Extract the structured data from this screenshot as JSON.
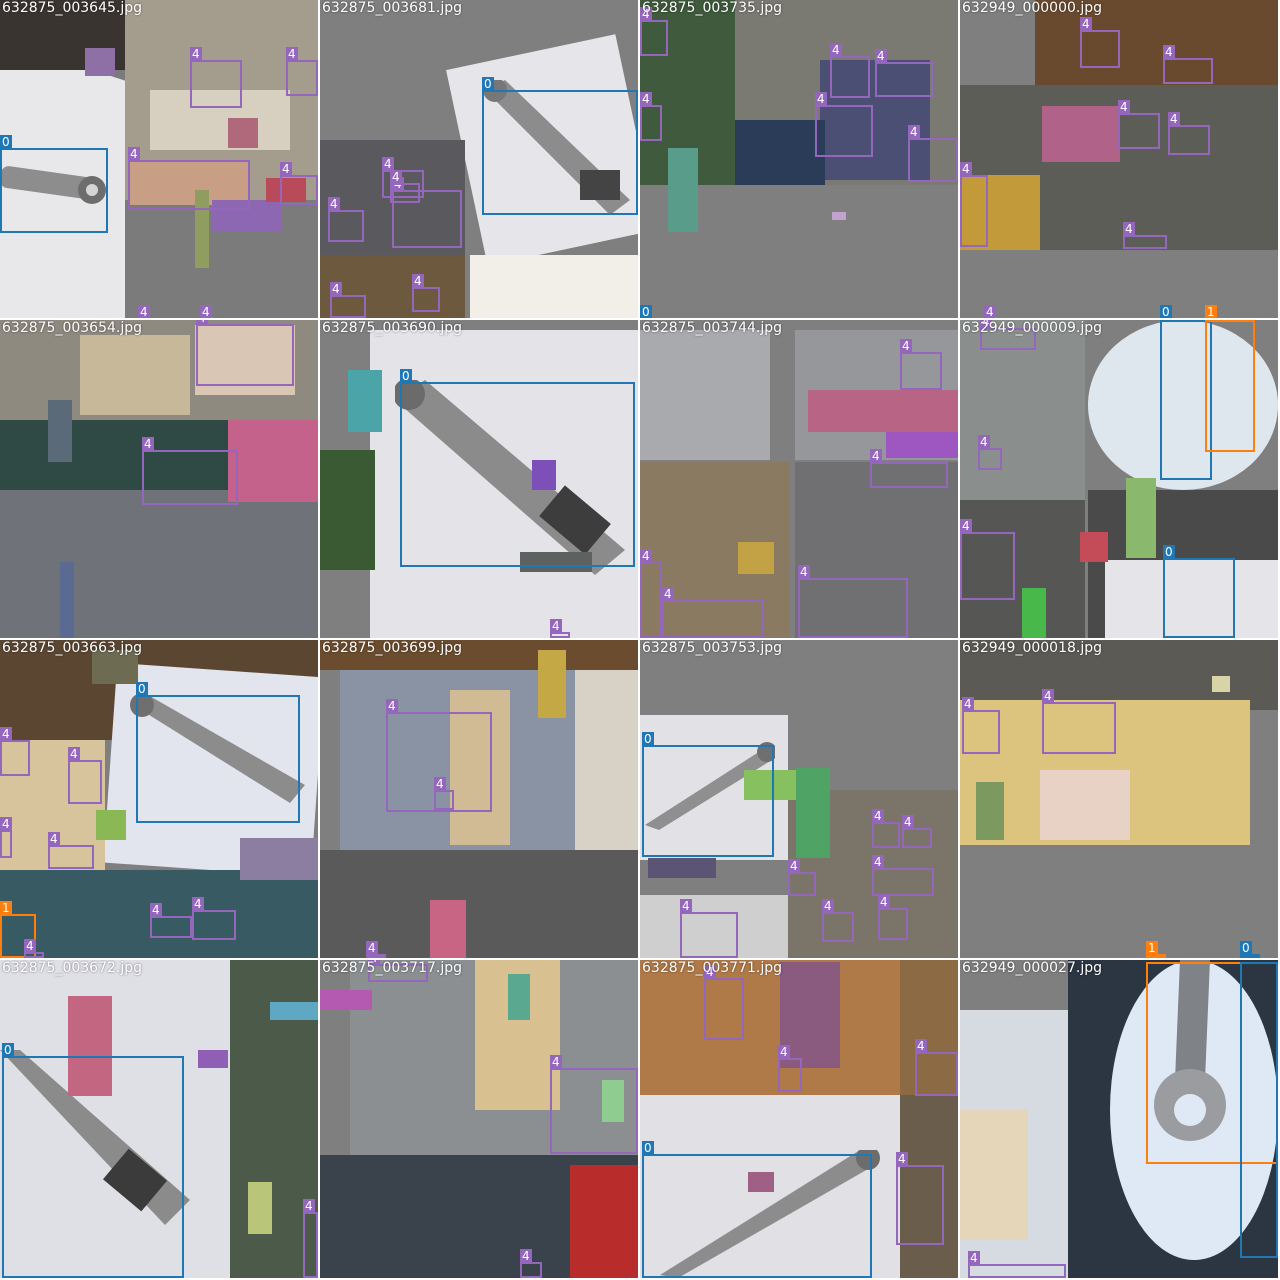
{
  "mosaic": {
    "tiles": [
      {
        "filename": "632875_003645.jpg",
        "class_labels": [
          "0",
          "4",
          "4",
          "4",
          "4",
          "4",
          "4"
        ]
      },
      {
        "filename": "632875_003681.jpg",
        "class_labels": [
          "0",
          "4",
          "4",
          "4",
          "4",
          "4",
          "4"
        ]
      },
      {
        "filename": "632875_003735.jpg",
        "class_labels": [
          "0",
          "4",
          "4",
          "4",
          "4",
          "4",
          "4"
        ]
      },
      {
        "filename": "632949_000000.jpg",
        "class_labels": [
          "4",
          "4",
          "4",
          "4",
          "4",
          "4",
          "4",
          "0",
          "1"
        ]
      },
      {
        "filename": "632875_003654.jpg",
        "class_labels": [
          "4",
          "4"
        ]
      },
      {
        "filename": "632875_003690.jpg",
        "class_labels": [
          "0",
          "4"
        ]
      },
      {
        "filename": "632875_003744.jpg",
        "class_labels": [
          "4",
          "4",
          "4",
          "4",
          "4"
        ]
      },
      {
        "filename": "632949_000009.jpg",
        "class_labels": [
          "4",
          "4",
          "4",
          "0",
          "1",
          "0"
        ]
      },
      {
        "filename": "632875_003663.jpg",
        "class_labels": [
          "0",
          "4",
          "4",
          "4",
          "4",
          "4",
          "4",
          "1",
          "4"
        ]
      },
      {
        "filename": "632875_003699.jpg",
        "class_labels": [
          "4",
          "4",
          "4"
        ]
      },
      {
        "filename": "632875_003753.jpg",
        "class_labels": [
          "0",
          "4",
          "4",
          "4",
          "4",
          "4",
          "4",
          "4"
        ]
      },
      {
        "filename": "632949_000018.jpg",
        "class_labels": [
          "4",
          "4",
          "1",
          "0"
        ]
      },
      {
        "filename": "632875_003672.jpg",
        "class_labels": [
          "0",
          "4"
        ]
      },
      {
        "filename": "632875_003717.jpg",
        "class_labels": [
          "4",
          "4",
          "4"
        ]
      },
      {
        "filename": "632875_003771.jpg",
        "class_labels": [
          "4",
          "4",
          "0",
          "4",
          "4"
        ]
      },
      {
        "filename": "632949_000027.jpg",
        "class_labels": [
          "4"
        ]
      }
    ]
  },
  "colors": {
    "class_0": "#1f77b4",
    "class_1": "#ff7f0e",
    "class_4": "#9467bd",
    "background": "#7f7f7f"
  }
}
